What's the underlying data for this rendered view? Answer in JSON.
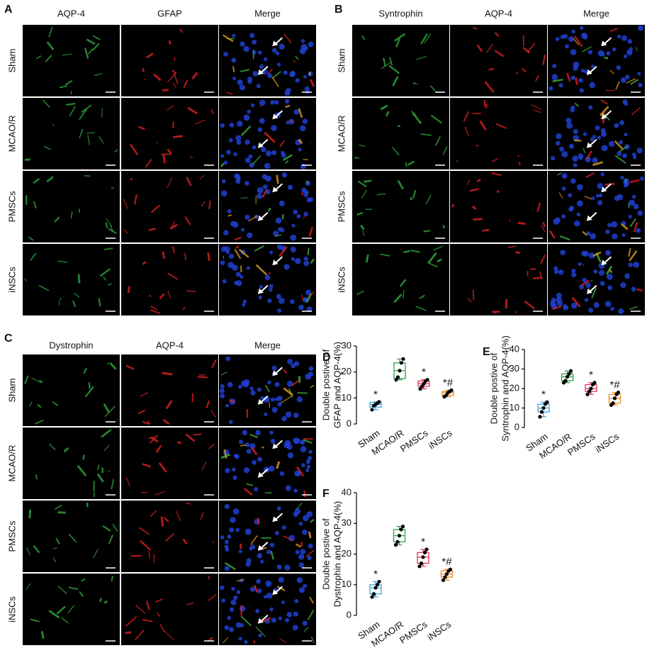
{
  "panel_a": {
    "label": "A",
    "columns": [
      "AQP-4",
      "GFAP",
      "Merge"
    ],
    "rows": [
      "Sham",
      "MCAO/R",
      "PMSCs",
      "iNSCs"
    ]
  },
  "panel_b": {
    "label": "B",
    "columns": [
      "Syntrophin",
      "AQP-4",
      "Merge"
    ],
    "rows": [
      "Sham",
      "MCAO/R",
      "PMSCs",
      "iNSCs"
    ]
  },
  "panel_c": {
    "label": "C",
    "columns": [
      "Dystrophin",
      "AQP-4",
      "Merge"
    ],
    "rows": [
      "Sham",
      "MCAO/R",
      "PMSCs",
      "iNSCs"
    ]
  },
  "chart_data": [
    {
      "type": "box",
      "panel_label": "D",
      "ylabel": [
        "Double postive of",
        "GFAP and AQP-4(%)"
      ],
      "categories": [
        "Sham",
        "MCAO/R",
        "PMSCs",
        "iNSCs"
      ],
      "colors": [
        "#3aa8e0",
        "#2f9e4b",
        "#e2325a",
        "#f0882a"
      ],
      "min": [
        5.5,
        17,
        13.5,
        10.5
      ],
      "q1": [
        6.5,
        17.5,
        14.5,
        11
      ],
      "median": [
        7.5,
        20.5,
        15.5,
        12
      ],
      "q3": [
        8.3,
        23.5,
        16.5,
        12.5
      ],
      "max": [
        8.5,
        25,
        17,
        13
      ],
      "points": [
        [
          5.5,
          7,
          7.5,
          8,
          8.5
        ],
        [
          17,
          18,
          20.5,
          23.5,
          25
        ],
        [
          13.5,
          14.5,
          15.5,
          16.5,
          17
        ],
        [
          10.5,
          11,
          12,
          12.5,
          13
        ]
      ],
      "annotations": [
        "*",
        null,
        "*",
        "*#"
      ],
      "ylim": [
        0,
        30
      ],
      "yticks": [
        0,
        10,
        20,
        30
      ]
    },
    {
      "type": "box",
      "panel_label": "E",
      "ylabel": [
        "Double postive of",
        "Syntrophin and AQP-4(%)"
      ],
      "categories": [
        "Sham",
        "MCAO/R",
        "PMSCs",
        "iNSCs"
      ],
      "colors": [
        "#3aa8e0",
        "#2f9e4b",
        "#e2325a",
        "#f0882a"
      ],
      "min": [
        5.5,
        23,
        17,
        11.5
      ],
      "q1": [
        8,
        24,
        18.5,
        12.5
      ],
      "median": [
        10,
        26,
        20,
        15
      ],
      "q3": [
        12,
        27.5,
        22,
        17
      ],
      "max": [
        13,
        29,
        23,
        18
      ],
      "points": [
        [
          5.5,
          8,
          10,
          12,
          13
        ],
        [
          23,
          24,
          26,
          27.5,
          29
        ],
        [
          17,
          18.5,
          20,
          22,
          23
        ],
        [
          11.5,
          12.5,
          15,
          17,
          18
        ]
      ],
      "annotations": [
        "*",
        null,
        "*",
        "*#"
      ],
      "ylim": [
        0,
        40
      ],
      "yticks": [
        0,
        10,
        20,
        30,
        40
      ]
    },
    {
      "type": "box",
      "panel_label": "F",
      "ylabel": [
        "Double postive of",
        "Dystrophin and AQP-4(%)"
      ],
      "categories": [
        "Sham",
        "MCAO/R",
        "PMSCs",
        "iNSCs"
      ],
      "colors": [
        "#3aa8e0",
        "#2f9e4b",
        "#e2325a",
        "#f0882a"
      ],
      "min": [
        6,
        23,
        16,
        11.5
      ],
      "q1": [
        7,
        24,
        17,
        12.5
      ],
      "median": [
        9,
        26,
        19,
        13.5
      ],
      "q3": [
        10,
        28,
        20.5,
        14.5
      ],
      "max": [
        11,
        29,
        21.5,
        15
      ],
      "points": [
        [
          6,
          7,
          9,
          10,
          11
        ],
        [
          23,
          24,
          26,
          28,
          29
        ],
        [
          16,
          17,
          19,
          20.5,
          21.5
        ],
        [
          11.5,
          12.5,
          13.5,
          14.5,
          15
        ]
      ],
      "annotations": [
        "*",
        null,
        "*",
        "*#"
      ],
      "ylim": [
        0,
        40
      ],
      "yticks": [
        0,
        10,
        20,
        30,
        40
      ]
    }
  ]
}
